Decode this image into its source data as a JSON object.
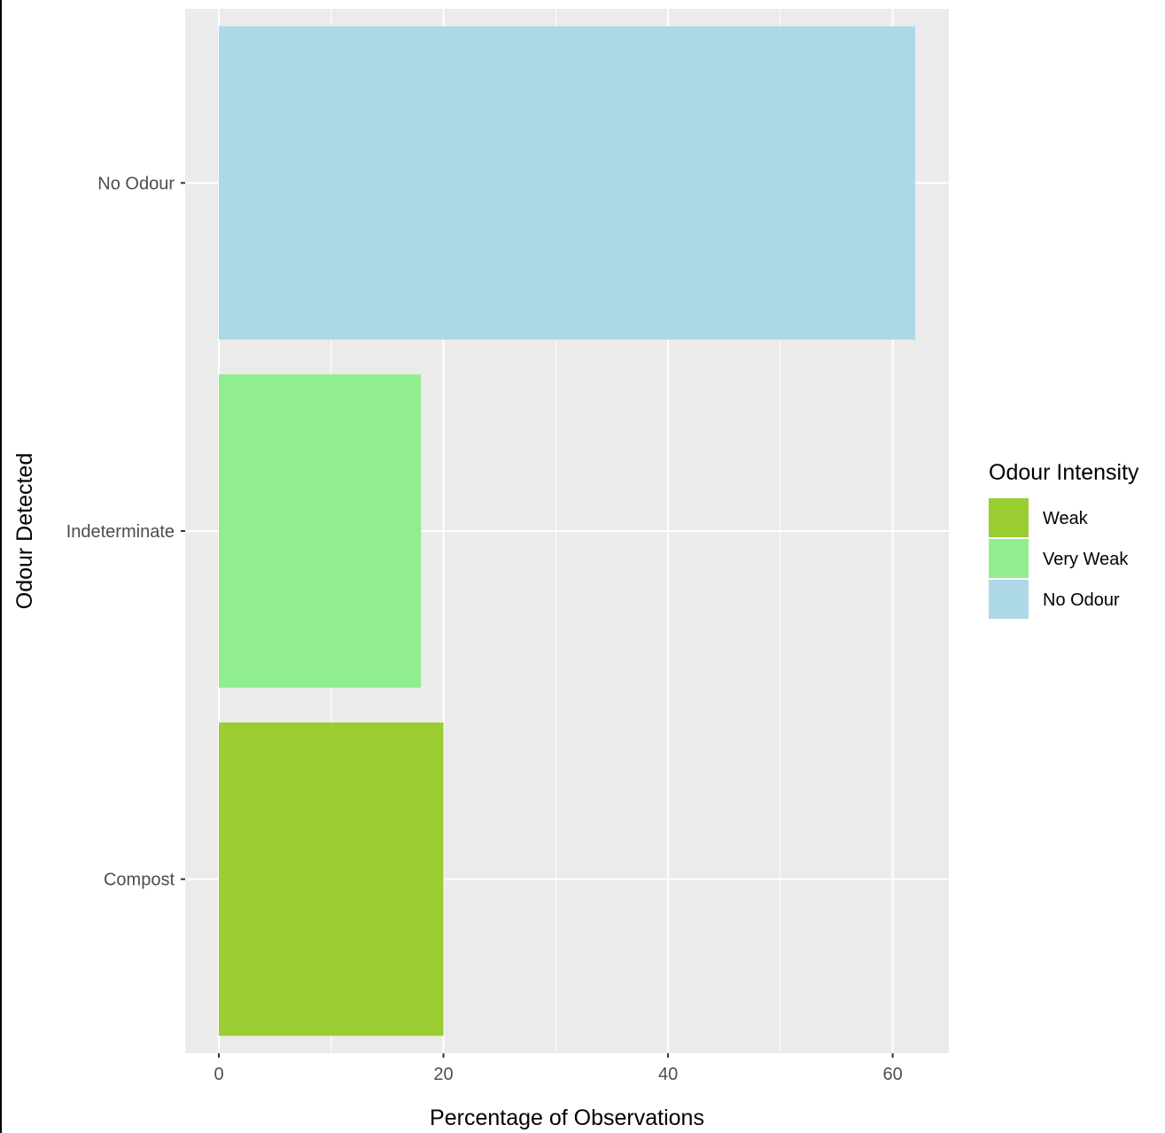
{
  "chart_data": {
    "type": "bar",
    "orientation": "horizontal",
    "categories": [
      "Compost",
      "Indeterminate",
      "No Odour"
    ],
    "values": [
      20,
      18,
      62
    ],
    "fill_groups": [
      "Weak",
      "Very Weak",
      "No Odour"
    ],
    "xlabel": "Percentage of Observations",
    "ylabel": "Odour Detected",
    "xlim": [
      -3,
      65
    ],
    "x_ticks": [
      0,
      20,
      40,
      60
    ],
    "x_minor_ticks": [
      10,
      30,
      50
    ],
    "grid": true,
    "legend": {
      "title": "Odour Intensity",
      "placement": "right",
      "entries": [
        {
          "label": "Weak",
          "color": "#9acd32"
        },
        {
          "label": "Very Weak",
          "color": "#90ee90"
        },
        {
          "label": "No Odour",
          "color": "#add8e6"
        }
      ]
    },
    "colors": {
      "panel_background": "#ebebeb",
      "grid_line": "#ffffff",
      "Weak": "#9acd32",
      "Very Weak": "#90ee90",
      "No Odour": "#add8e6"
    }
  }
}
